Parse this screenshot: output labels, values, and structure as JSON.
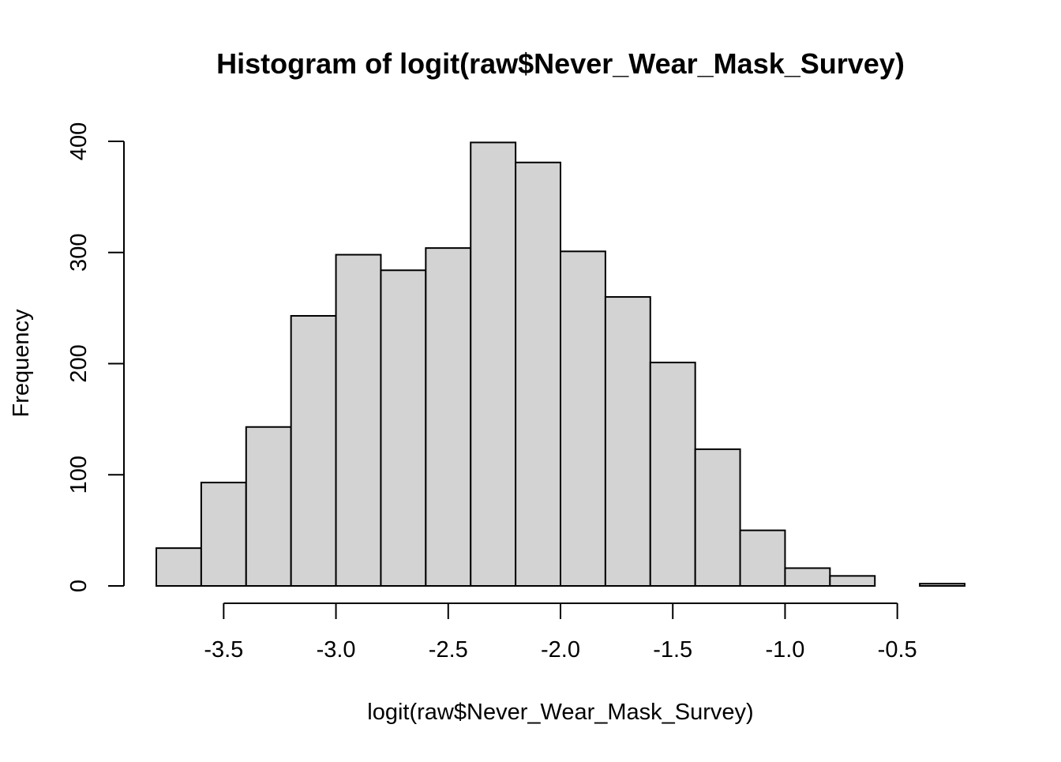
{
  "chart_data": {
    "type": "bar",
    "title": "Histogram of logit(raw$Never_Wear_Mask_Survey)",
    "xlabel": "logit(raw$Never_Wear_Mask_Survey)",
    "ylabel": "Frequency",
    "bin_edges": [
      -3.8,
      -3.6,
      -3.4,
      -3.2,
      -3.0,
      -2.8,
      -2.6,
      -2.4,
      -2.2,
      -2.0,
      -1.8,
      -1.6,
      -1.4,
      -1.2,
      -1.0,
      -0.8,
      -0.6,
      -0.4,
      -0.2
    ],
    "values": [
      34,
      93,
      143,
      243,
      298,
      284,
      304,
      399,
      381,
      301,
      260,
      201,
      123,
      50,
      16,
      9,
      0,
      2
    ],
    "xlim": [
      -3.8,
      -0.2
    ],
    "ylim": [
      0,
      400
    ],
    "x_ticks": [
      -3.5,
      -3.0,
      -2.5,
      -2.0,
      -1.5,
      -1.0,
      -0.5
    ],
    "x_tick_labels": [
      "-3.5",
      "-3.0",
      "-2.5",
      "-2.0",
      "-1.5",
      "-1.0",
      "-0.5"
    ],
    "y_ticks": [
      0,
      100,
      200,
      300,
      400
    ],
    "y_tick_labels": [
      "0",
      "100",
      "200",
      "300",
      "400"
    ],
    "grid": false,
    "colors": {
      "bar_fill": "#d3d3d3",
      "bar_stroke": "#000000"
    }
  }
}
